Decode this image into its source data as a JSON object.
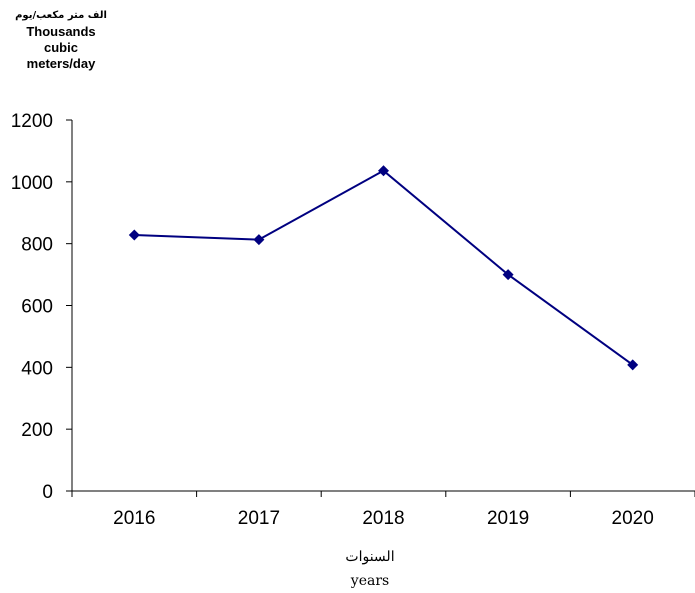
{
  "chart_data": {
    "type": "line",
    "ylabel_ar": "الف متر مكعب/يوم",
    "ylabel_en": "Thousands cubic meters/day",
    "xlabel_ar": "السنوات",
    "xlabel_en": "years",
    "categories": [
      "2016",
      "2017",
      "2018",
      "2019",
      "2020"
    ],
    "series": [
      {
        "values": [
          828,
          813,
          1036,
          700,
          408
        ]
      }
    ],
    "ylim": [
      0,
      1200
    ],
    "yticks": [
      0,
      200,
      400,
      600,
      800,
      1000,
      1200
    ],
    "grid": false,
    "legend": "none",
    "line_color": "#000080",
    "marker": "diamond"
  }
}
